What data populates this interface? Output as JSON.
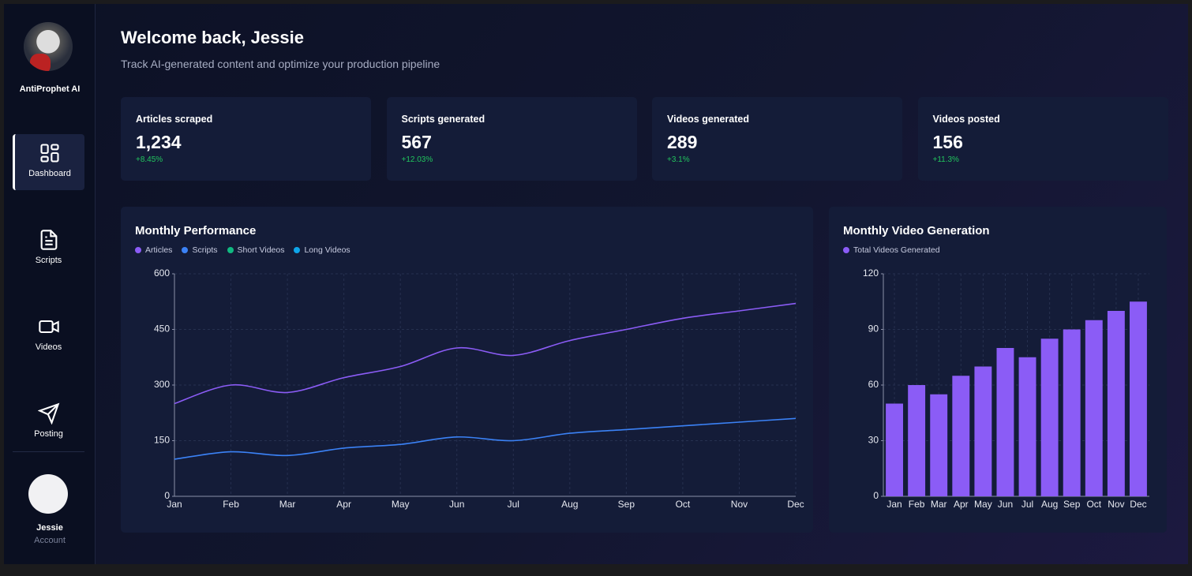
{
  "sidebar": {
    "brand": "AntiProphet AI",
    "nav": [
      "Dashboard",
      "Scripts",
      "Videos",
      "Posting"
    ],
    "user": {
      "name": "Jessie",
      "role": "Account"
    }
  },
  "header": {
    "title": "Welcome back, Jessie",
    "subtitle": "Track AI-generated content and optimize your production pipeline"
  },
  "stats": [
    {
      "label": "Articles scraped",
      "value": "1,234",
      "change": "+8.45%"
    },
    {
      "label": "Scripts generated",
      "value": "567",
      "change": "+12.03%"
    },
    {
      "label": "Videos generated",
      "value": "289",
      "change": "+3.1%"
    },
    {
      "label": "Videos posted",
      "value": "156",
      "change": "+11.3%"
    }
  ],
  "chart_data": [
    {
      "type": "line",
      "title": "Monthly Performance",
      "categories": [
        "Jan",
        "Feb",
        "Mar",
        "Apr",
        "May",
        "Jun",
        "Jul",
        "Aug",
        "Sep",
        "Oct",
        "Nov",
        "Dec"
      ],
      "series": [
        {
          "name": "Articles",
          "color": "#8b5cf6",
          "values": [
            250,
            300,
            280,
            320,
            350,
            400,
            380,
            420,
            450,
            480,
            500,
            520
          ]
        },
        {
          "name": "Scripts",
          "color": "#3b82f6",
          "values": [
            100,
            120,
            110,
            130,
            140,
            160,
            150,
            170,
            180,
            190,
            200,
            210
          ]
        },
        {
          "name": "Short Videos",
          "color": "#10b981",
          "values": [
            null,
            null,
            null,
            null,
            null,
            null,
            null,
            null,
            null,
            null,
            null,
            null
          ]
        },
        {
          "name": "Long Videos",
          "color": "#0ea5e9",
          "values": [
            null,
            null,
            null,
            null,
            null,
            null,
            null,
            null,
            null,
            null,
            null,
            null
          ]
        }
      ],
      "ylim": [
        0,
        600
      ],
      "yticks": [
        0,
        150,
        300,
        450,
        600
      ],
      "grid": true
    },
    {
      "type": "bar",
      "title": "Monthly Video Generation",
      "categories": [
        "Jan",
        "Feb",
        "Mar",
        "Apr",
        "May",
        "Jun",
        "Jul",
        "Aug",
        "Sep",
        "Oct",
        "Nov",
        "Dec"
      ],
      "series": [
        {
          "name": "Total Videos Generated",
          "color": "#8b5cf6",
          "values": [
            50,
            60,
            55,
            65,
            70,
            80,
            75,
            85,
            90,
            95,
            100,
            105
          ]
        }
      ],
      "ylim": [
        0,
        120
      ],
      "yticks": [
        0,
        30,
        60,
        90,
        120
      ],
      "grid": true
    }
  ]
}
